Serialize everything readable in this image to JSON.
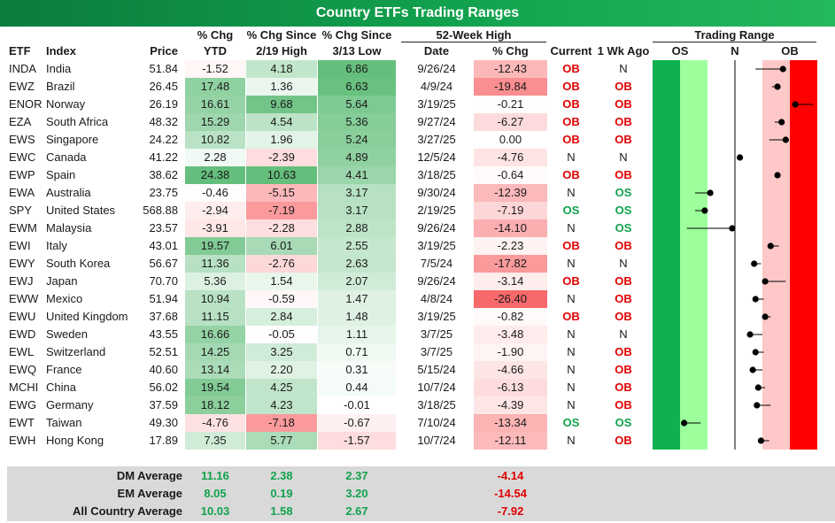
{
  "title": "Country ETFs Trading Ranges",
  "headers": {
    "etf": "ETF",
    "index": "Index",
    "price": "Price",
    "ytd_top": "% Chg",
    "ytd_bottom": "YTD",
    "high219_top": "% Chg Since",
    "high219_bottom": "2/19 High",
    "low313_top": "% Chg Since",
    "low313_bottom": "3/13 Low",
    "wk52_group": "52-Week High",
    "wk52_date": "Date",
    "wk52_chg": "% Chg",
    "current": "Current",
    "wk1_ago": "1 Wk Ago",
    "trading_range": "Trading Range",
    "tr_os": "OS",
    "tr_n": "N",
    "tr_ob": "OB"
  },
  "rows": [
    {
      "etf": "INDA",
      "index": "India",
      "price": "51.84",
      "ytd": "-1.52",
      "h219": "4.18",
      "l313": "6.86",
      "date52": "9/26/24",
      "chg52": "-12.43",
      "current": "OB",
      "wk1": "N",
      "tr": {
        "cur": 1.75,
        "prev": 0.75
      }
    },
    {
      "etf": "EWZ",
      "index": "Brazil",
      "price": "26.45",
      "ytd": "17.48",
      "h219": "1.36",
      "l313": "6.63",
      "date52": "4/9/24",
      "chg52": "-19.84",
      "current": "OB",
      "wk1": "OB",
      "tr": {
        "cur": 1.55,
        "prev": 1.35
      }
    },
    {
      "etf": "ENOR",
      "index": "Norway",
      "price": "26.19",
      "ytd": "16.61",
      "h219": "9.68",
      "l313": "5.64",
      "date52": "3/19/25",
      "chg52": "-0.21",
      "current": "OB",
      "wk1": "OB",
      "tr": {
        "cur": 2.2,
        "prev": 2.85
      }
    },
    {
      "etf": "EZA",
      "index": "South Africa",
      "price": "48.32",
      "ytd": "15.29",
      "h219": "4.54",
      "l313": "5.36",
      "date52": "9/27/24",
      "chg52": "-6.27",
      "current": "OB",
      "wk1": "OB",
      "tr": {
        "cur": 1.7,
        "prev": 1.45
      }
    },
    {
      "etf": "EWS",
      "index": "Singapore",
      "price": "24.22",
      "ytd": "10.82",
      "h219": "1.96",
      "l313": "5.24",
      "date52": "3/27/25",
      "chg52": "0.00",
      "current": "OB",
      "wk1": "OB",
      "tr": {
        "cur": 1.85,
        "prev": 1.25
      }
    },
    {
      "etf": "EWC",
      "index": "Canada",
      "price": "41.22",
      "ytd": "2.28",
      "h219": "-2.39",
      "l313": "4.89",
      "date52": "12/5/24",
      "chg52": "-4.76",
      "current": "N",
      "wk1": "N",
      "tr": {
        "cur": 0.18,
        "prev": 0.18
      }
    },
    {
      "etf": "EWP",
      "index": "Spain",
      "price": "38.62",
      "ytd": "24.38",
      "h219": "10.63",
      "l313": "4.41",
      "date52": "3/18/25",
      "chg52": "-0.64",
      "current": "OB",
      "wk1": "OB",
      "tr": {
        "cur": 1.55,
        "prev": 1.45
      }
    },
    {
      "etf": "EWA",
      "index": "Australia",
      "price": "23.75",
      "ytd": "-0.46",
      "h219": "-5.15",
      "l313": "3.17",
      "date52": "9/30/24",
      "chg52": "-12.39",
      "current": "N",
      "wk1": "OS",
      "tr": {
        "cur": -0.9,
        "prev": -1.45
      }
    },
    {
      "etf": "SPY",
      "index": "United States",
      "price": "568.88",
      "ytd": "-2.94",
      "h219": "-7.19",
      "l313": "3.17",
      "date52": "2/19/25",
      "chg52": "-7.19",
      "current": "OS",
      "wk1": "OS",
      "tr": {
        "cur": -1.1,
        "prev": -1.45
      }
    },
    {
      "etf": "EWM",
      "index": "Malaysia",
      "price": "23.57",
      "ytd": "-3.91",
      "h219": "-2.28",
      "l313": "2.88",
      "date52": "9/26/24",
      "chg52": "-14.10",
      "current": "N",
      "wk1": "OS",
      "tr": {
        "cur": -0.1,
        "prev": -1.75
      }
    },
    {
      "etf": "EWI",
      "index": "Italy",
      "price": "43.01",
      "ytd": "19.57",
      "h219": "6.01",
      "l313": "2.55",
      "date52": "3/19/25",
      "chg52": "-2.23",
      "current": "OB",
      "wk1": "OB",
      "tr": {
        "cur": 1.3,
        "prev": 1.6
      }
    },
    {
      "etf": "EWY",
      "index": "South Korea",
      "price": "56.67",
      "ytd": "11.36",
      "h219": "-2.76",
      "l313": "2.63",
      "date52": "7/5/24",
      "chg52": "-17.82",
      "current": "N",
      "wk1": "N",
      "tr": {
        "cur": 0.7,
        "prev": 0.95
      }
    },
    {
      "etf": "EWJ",
      "index": "Japan",
      "price": "70.70",
      "ytd": "5.36",
      "h219": "1.54",
      "l313": "2.07",
      "date52": "9/26/24",
      "chg52": "-3.14",
      "current": "OB",
      "wk1": "OB",
      "tr": {
        "cur": 1.1,
        "prev": 1.85
      }
    },
    {
      "etf": "EWW",
      "index": "Mexico",
      "price": "51.94",
      "ytd": "10.94",
      "h219": "-0.59",
      "l313": "1.47",
      "date52": "4/8/24",
      "chg52": "-26.40",
      "current": "N",
      "wk1": "OB",
      "tr": {
        "cur": 0.75,
        "prev": 1.05
      }
    },
    {
      "etf": "EWU",
      "index": "United Kingdom",
      "price": "37.68",
      "ytd": "11.15",
      "h219": "2.84",
      "l313": "1.48",
      "date52": "3/19/25",
      "chg52": "-0.82",
      "current": "OB",
      "wk1": "OB",
      "tr": {
        "cur": 1.1,
        "prev": 1.3
      }
    },
    {
      "etf": "EWD",
      "index": "Sweden",
      "price": "43.55",
      "ytd": "16.66",
      "h219": "-0.05",
      "l313": "1.11",
      "date52": "3/7/25",
      "chg52": "-3.48",
      "current": "N",
      "wk1": "N",
      "tr": {
        "cur": 0.55,
        "prev": 1.0
      }
    },
    {
      "etf": "EWL",
      "index": "Switzerland",
      "price": "52.51",
      "ytd": "14.25",
      "h219": "3.25",
      "l313": "0.71",
      "date52": "3/7/25",
      "chg52": "-1.90",
      "current": "N",
      "wk1": "OB",
      "tr": {
        "cur": 0.75,
        "prev": 1.05
      }
    },
    {
      "etf": "EWQ",
      "index": "France",
      "price": "40.60",
      "ytd": "13.14",
      "h219": "2.20",
      "l313": "0.31",
      "date52": "5/15/24",
      "chg52": "-4.66",
      "current": "N",
      "wk1": "OB",
      "tr": {
        "cur": 0.65,
        "prev": 1.0
      }
    },
    {
      "etf": "MCHI",
      "index": "China",
      "price": "56.02",
      "ytd": "19.54",
      "h219": "4.25",
      "l313": "0.44",
      "date52": "10/7/24",
      "chg52": "-6.13",
      "current": "N",
      "wk1": "OB",
      "tr": {
        "cur": 0.85,
        "prev": 1.1
      }
    },
    {
      "etf": "EWG",
      "index": "Germany",
      "price": "37.59",
      "ytd": "18.12",
      "h219": "4.23",
      "l313": "-0.01",
      "date52": "3/18/25",
      "chg52": "-4.39",
      "current": "N",
      "wk1": "OB",
      "tr": {
        "cur": 0.8,
        "prev": 1.3
      }
    },
    {
      "etf": "EWT",
      "index": "Taiwan",
      "price": "49.30",
      "ytd": "-4.76",
      "h219": "-7.18",
      "l313": "-0.67",
      "date52": "7/10/24",
      "chg52": "-13.34",
      "current": "OS",
      "wk1": "OS",
      "tr": {
        "cur": -1.85,
        "prev": -1.25
      }
    },
    {
      "etf": "EWH",
      "index": "Hong Kong",
      "price": "17.89",
      "ytd": "7.35",
      "h219": "5.77",
      "l313": "-1.57",
      "date52": "10/7/24",
      "chg52": "-12.11",
      "current": "N",
      "wk1": "OB",
      "tr": {
        "cur": 0.95,
        "prev": 1.25
      }
    }
  ],
  "averages": [
    {
      "label": "DM Average",
      "ytd": "11.16",
      "h219": "2.38",
      "l313": "2.37",
      "chg52": "-4.14"
    },
    {
      "label": "EM Average",
      "ytd": "8.05",
      "h219": "0.19",
      "l313": "3.20",
      "chg52": "-14.54"
    },
    {
      "label": "All Country Average",
      "ytd": "10.03",
      "h219": "1.58",
      "l313": "2.67",
      "chg52": "-7.92"
    }
  ],
  "colors": {
    "banner_green": "#12a24e",
    "ob_red": "#e00000",
    "os_green": "#12a24e",
    "tr_os_dark": "#0fb04e",
    "tr_os_light": "#9cff9c",
    "tr_ob_light": "#ffc8c8",
    "tr_ob_dark": "#ff0000"
  }
}
